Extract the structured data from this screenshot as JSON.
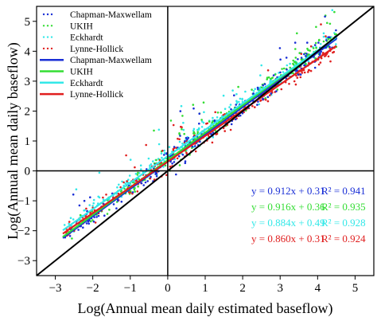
{
  "chart_data": {
    "type": "scatter",
    "xlabel": "Log(Annual mean daily estimated baseflow)",
    "ylabel": "Log(Annual mean daily baseflow)",
    "xlim": [
      -3.5,
      5.5
    ],
    "ylim": [
      -3.5,
      5.5
    ],
    "xticks": [
      "−3",
      "−2",
      "−1",
      "0",
      "1",
      "2",
      "3",
      "4",
      "5"
    ],
    "yticks": [
      "−3",
      "−2",
      "−1",
      "0",
      "1",
      "2",
      "3",
      "4",
      "5"
    ],
    "grid": false,
    "reference_lines": [
      "1:1 line",
      "x = 0",
      "y = 0"
    ],
    "legend_position": "top-left",
    "series": [
      {
        "name": "Chapman-Maxwellam",
        "color": "#1a2fd6",
        "fit": {
          "slope": 0.912,
          "intercept": 0.31,
          "r2": 0.941
        }
      },
      {
        "name": "UKIH",
        "color": "#33dd33",
        "fit": {
          "slope": 0.916,
          "intercept": 0.36,
          "r2": 0.935
        }
      },
      {
        "name": "Eckhardt",
        "color": "#33e8e8",
        "fit": {
          "slope": 0.884,
          "intercept": 0.49,
          "r2": 0.928
        }
      },
      {
        "name": "Lynne-Hollick",
        "color": "#e01e1e",
        "fit": {
          "slope": 0.86,
          "intercept": 0.31,
          "r2": 0.924
        }
      }
    ],
    "x_range_of_points": [
      -2.8,
      4.5
    ],
    "legend": {
      "points": [
        "Chapman-Maxwellam",
        "UKIH",
        "Eckhardt",
        "Lynne-Hollick"
      ],
      "lines": [
        "Chapman-Maxwellam",
        "UKIH",
        "Eckhardt",
        "Lynne-Hollick"
      ]
    },
    "annotations": [
      {
        "text": "y = 0.912x + 0.31",
        "r2_text": "R² = 0.941",
        "color": "#1a2fd6"
      },
      {
        "text": "y = 0.916x + 0.36",
        "r2_text": "R² = 0.935",
        "color": "#33dd33"
      },
      {
        "text": "y = 0.884x + 0.49",
        "r2_text": "R² = 0.928",
        "color": "#33e8e8"
      },
      {
        "text": "y = 0.860x + 0.31",
        "r2_text": "R² = 0.924",
        "color": "#e01e1e"
      }
    ]
  }
}
